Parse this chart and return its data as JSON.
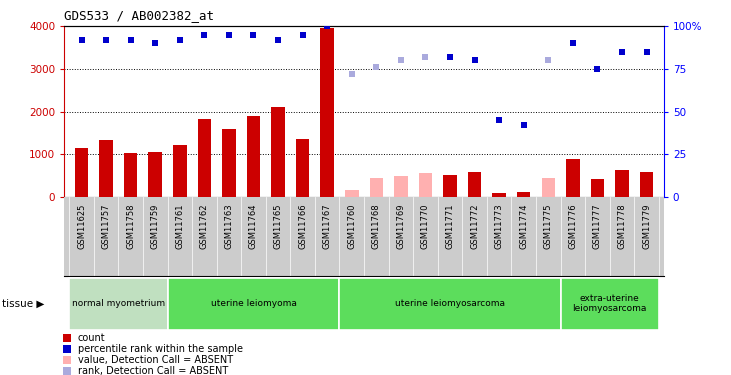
{
  "title": "GDS533 / AB002382_at",
  "samples": [
    "GSM11625",
    "GSM11757",
    "GSM11758",
    "GSM11759",
    "GSM11761",
    "GSM11762",
    "GSM11763",
    "GSM11764",
    "GSM11765",
    "GSM11766",
    "GSM11767",
    "GSM11760",
    "GSM11768",
    "GSM11769",
    "GSM11770",
    "GSM11771",
    "GSM11772",
    "GSM11773",
    "GSM11774",
    "GSM11775",
    "GSM11776",
    "GSM11777",
    "GSM11778",
    "GSM11779"
  ],
  "count_values": [
    1150,
    1330,
    1020,
    1050,
    1220,
    1830,
    1580,
    1900,
    2110,
    1360,
    3950,
    150,
    450,
    500,
    570,
    520,
    590,
    100,
    110,
    450,
    880,
    430,
    620,
    580
  ],
  "count_absent": [
    false,
    false,
    false,
    false,
    false,
    false,
    false,
    false,
    false,
    false,
    false,
    true,
    true,
    true,
    true,
    false,
    false,
    false,
    false,
    true,
    false,
    false,
    false,
    false
  ],
  "rank_values": [
    92,
    92,
    92,
    90,
    92,
    95,
    95,
    95,
    92,
    95,
    100,
    72,
    76,
    80,
    82,
    82,
    80,
    45,
    42,
    80,
    90,
    75,
    85,
    85
  ],
  "rank_absent": [
    false,
    false,
    false,
    false,
    false,
    false,
    false,
    false,
    false,
    false,
    false,
    true,
    true,
    true,
    true,
    false,
    false,
    false,
    false,
    true,
    false,
    false,
    false,
    false
  ],
  "groups": [
    {
      "label": "normal myometrium",
      "start": 0,
      "end": 3,
      "color": "#c0e0c0"
    },
    {
      "label": "uterine leiomyoma",
      "start": 4,
      "end": 10,
      "color": "#5cdd5c"
    },
    {
      "label": "uterine leiomyosarcoma",
      "start": 11,
      "end": 19,
      "color": "#5cdd5c"
    },
    {
      "label": "extra-uterine\nleiomyosarcoma",
      "start": 20,
      "end": 23,
      "color": "#5cdd5c"
    }
  ],
  "ylim_left": [
    0,
    4000
  ],
  "ylim_right": [
    0,
    100
  ],
  "yticks_left": [
    0,
    1000,
    2000,
    3000,
    4000
  ],
  "yticks_right": [
    0,
    25,
    50,
    75,
    100
  ],
  "ytick_labels_right": [
    "0",
    "25",
    "50",
    "75",
    "100%"
  ],
  "color_present_bar": "#cc0000",
  "color_absent_bar": "#ffb0b0",
  "color_present_rank": "#0000cc",
  "color_absent_rank": "#aaaadd",
  "sample_label_bg": "#cccccc",
  "tissue_row_bg": "#bbbbbb",
  "legend_items": [
    {
      "color": "#cc0000",
      "label": "count"
    },
    {
      "color": "#0000cc",
      "label": "percentile rank within the sample"
    },
    {
      "color": "#ffb0b0",
      "label": "value, Detection Call = ABSENT"
    },
    {
      "color": "#aaaadd",
      "label": "rank, Detection Call = ABSENT"
    }
  ]
}
